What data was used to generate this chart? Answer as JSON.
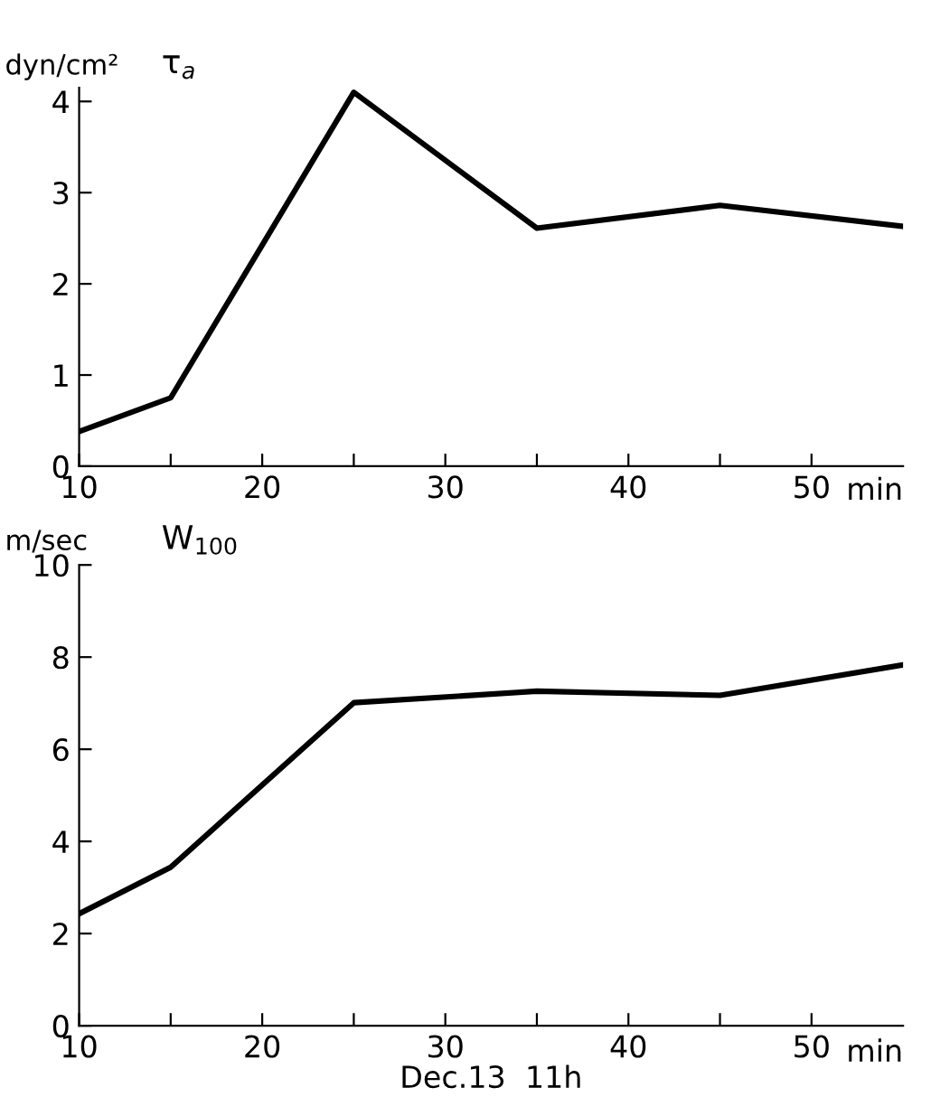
{
  "chart_data": [
    {
      "type": "line",
      "title": "τ$_{a}$",
      "ylabel": "dyn/cm²",
      "xlabel": "min",
      "x": [
        10,
        15,
        25,
        35,
        45,
        55
      ],
      "series": [
        {
          "color": "#000000",
          "values": [
            0.38,
            0.75,
            4.1,
            2.61,
            2.86,
            2.63
          ]
        }
      ],
      "xlim": [
        10,
        55
      ],
      "ylim": [
        0,
        4.15
      ],
      "xticks": [
        10,
        {
          "value": 15,
          "label": null
        },
        20,
        {
          "value": 25,
          "label": null
        },
        30,
        {
          "value": 35,
          "label": null
        },
        40,
        {
          "value": 45,
          "label": null
        },
        50
      ],
      "yticks": [
        0,
        1,
        2,
        3,
        4
      ],
      "grid": false,
      "legend": false
    },
    {
      "type": "line",
      "title": "W$_{100}$",
      "ylabel": "m/sec",
      "xlabel": "min",
      "x": [
        10,
        15,
        25,
        35,
        45,
        55
      ],
      "series": [
        {
          "color": "#000000",
          "values": [
            2.43,
            3.44,
            7.01,
            7.26,
            7.17,
            7.83
          ]
        }
      ],
      "xlim": [
        10,
        55
      ],
      "ylim": [
        0,
        10
      ],
      "xticks": [
        10,
        {
          "value": 15,
          "label": null
        },
        20,
        {
          "value": 25,
          "label": null
        },
        30,
        {
          "value": 35,
          "label": null
        },
        40,
        {
          "value": 45,
          "label": null
        },
        50
      ],
      "yticks": [
        0,
        2,
        4,
        6,
        8,
        10
      ],
      "grid": false,
      "legend": false,
      "annotations": [
        "Dec.13  11h"
      ]
    }
  ]
}
